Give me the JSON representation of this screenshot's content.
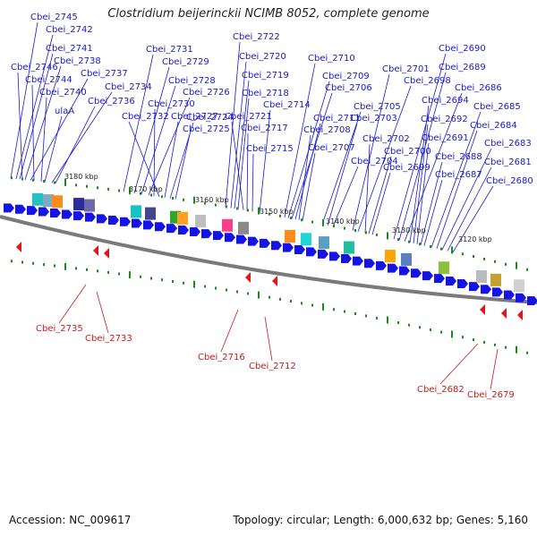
{
  "title": "Clostridium beijerinckii NCIMB 8052, complete genome",
  "footer": {
    "accession": "Accession: NC_009617",
    "topology": "Topology: circular; Length: 6,000,632 bp; Genes: 5,160"
  },
  "colors": {
    "forward_gene": "#1414e6",
    "reverse_gene": "#e61414",
    "backbone": "#7a7a7a",
    "label_forward": "#1a1acc",
    "label_reverse": "#cc1a1a",
    "tick": "#1a8c1a"
  },
  "ruler": [
    "3180 kbp",
    "3170 kbp",
    "3160 kbp",
    "3150 kbp",
    "3140 kbp",
    "3130 kbp",
    "3120 kbp"
  ],
  "forward_labels": [
    "Cbei_2745",
    "Cbei_2742",
    "Cbei_2741",
    "Cbei_2738",
    "Cbei_2746",
    "Cbei_2737",
    "Cbei_2744",
    "Cbei_2740",
    "Cbei_2734",
    "ulaA",
    "Cbei_2736",
    "Cbei_2731",
    "Cbei_2729",
    "Cbei_2728",
    "Cbei_2726",
    "Cbei_2730",
    "Cbei_2732",
    "Cbei_2727",
    "Cbei_2724",
    "Cbei_2725",
    "Cbei_2722",
    "Cbei_2720",
    "Cbei_2719",
    "Cbei_2718",
    "Cbei_2721",
    "Cbei_2717",
    "Cbei_2715",
    "Cbei_2714",
    "Cbei_2710",
    "Cbei_2709",
    "Cbei_2706",
    "Cbei_2711",
    "Cbei_2708",
    "Cbei_2707",
    "Cbei_2705",
    "Cbei_2703",
    "Cbei_2704",
    "Cbei_2701",
    "Cbei_2698",
    "Cbei_2702",
    "Cbei_2700",
    "Cbei_2699",
    "Cbei_2690",
    "Cbei_2689",
    "Cbei_2686",
    "Cbei_2694",
    "Cbei_2692",
    "Cbei_2691",
    "Cbei_2688",
    "Cbei_2687",
    "Cbei_2685",
    "Cbei_2684",
    "Cbei_2683",
    "Cbei_2681",
    "Cbei_2680"
  ],
  "reverse_labels": [
    "Cbei_2735",
    "Cbei_2733",
    "Cbei_2716",
    "Cbei_2712",
    "Cbei_2682",
    "Cbei_2679"
  ]
}
